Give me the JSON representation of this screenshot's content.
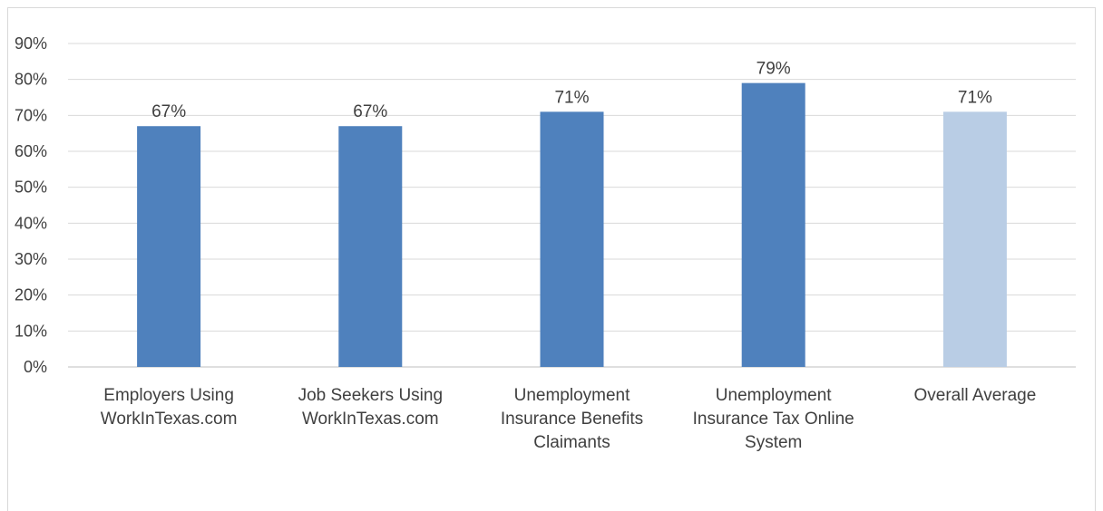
{
  "chart_data": {
    "type": "bar",
    "categories": [
      [
        "Employers Using",
        "WorkInTexas.com"
      ],
      [
        "Job Seekers Using",
        "WorkInTexas.com"
      ],
      [
        "Unemployment",
        "Insurance Benefits",
        "Claimants"
      ],
      [
        "Unemployment",
        "Insurance Tax Online",
        "System"
      ],
      [
        "Overall Average"
      ]
    ],
    "values": [
      0.67,
      0.67,
      0.71,
      0.79,
      0.71
    ],
    "data_labels": [
      "67%",
      "67%",
      "71%",
      "79%",
      "71%"
    ],
    "ylim": [
      0,
      0.9
    ],
    "yticks": [
      0,
      0.1,
      0.2,
      0.3,
      0.4,
      0.5,
      0.6,
      0.7,
      0.8,
      0.9
    ],
    "ytick_labels": [
      "0%",
      "10%",
      "20%",
      "30%",
      "40%",
      "50%",
      "60%",
      "70%",
      "80%",
      "90%"
    ],
    "grid": true,
    "colors": {
      "bar": "#4f81bd",
      "highlight_bar": "#b9cde5",
      "gridline": "#d9d9d9",
      "axis": "#bfbfbf",
      "text": "#404040"
    },
    "highlight_index": 4
  }
}
